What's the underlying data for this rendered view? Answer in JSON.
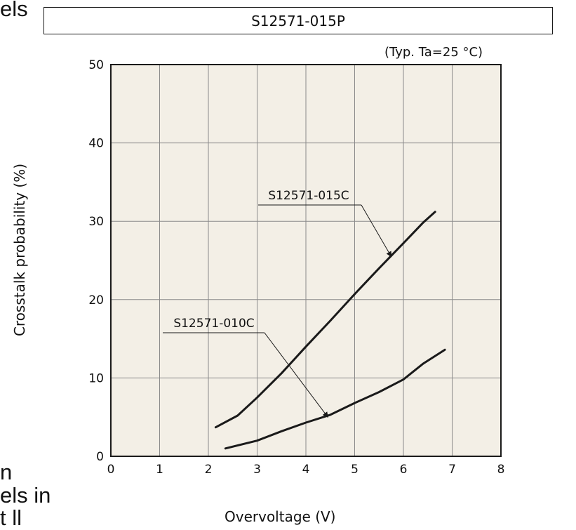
{
  "cropped_text": {
    "top": "els",
    "bottom_1": "n",
    "bottom_2": "els in",
    "bottom_3": "t ll"
  },
  "product_box_label": "S12571-015P",
  "condition_note": "(Typ. Ta=25 °C)",
  "chart_data": {
    "type": "line",
    "xlabel": "Overvoltage (V)",
    "ylabel": "Crosstalk probability (%)",
    "xlim": [
      0,
      8
    ],
    "ylim": [
      0,
      50
    ],
    "x_ticks": [
      "0",
      "1",
      "2",
      "3",
      "4",
      "5",
      "6",
      "7",
      "8"
    ],
    "y_ticks": [
      "0",
      "10",
      "20",
      "30",
      "40",
      "50"
    ],
    "grid": true,
    "series": [
      {
        "name": "S12571-015C",
        "color": "#1a1a1a",
        "x": [
          2.15,
          2.6,
          3.0,
          3.5,
          4.0,
          4.5,
          5.0,
          5.5,
          6.0,
          6.4,
          6.65
        ],
        "y": [
          3.7,
          5.2,
          7.5,
          10.6,
          14.0,
          17.3,
          20.7,
          24.0,
          27.2,
          29.8,
          31.2
        ]
      },
      {
        "name": "S12571-010C",
        "color": "#1a1a1a",
        "x": [
          2.35,
          3.0,
          3.5,
          4.0,
          4.5,
          5.0,
          5.5,
          6.0,
          6.4,
          6.85
        ],
        "y": [
          1.0,
          2.0,
          3.2,
          4.3,
          5.3,
          6.8,
          8.2,
          9.8,
          11.8,
          13.6
        ]
      }
    ],
    "annotations": [
      {
        "text": "S12571-015C",
        "points_to_series": "S12571-015C",
        "anchor_x": 5.75,
        "anchor_y": 25.5
      },
      {
        "text": "S12571-010C",
        "points_to_series": "S12571-010C",
        "anchor_x": 4.45,
        "anchor_y": 5.0
      }
    ]
  }
}
